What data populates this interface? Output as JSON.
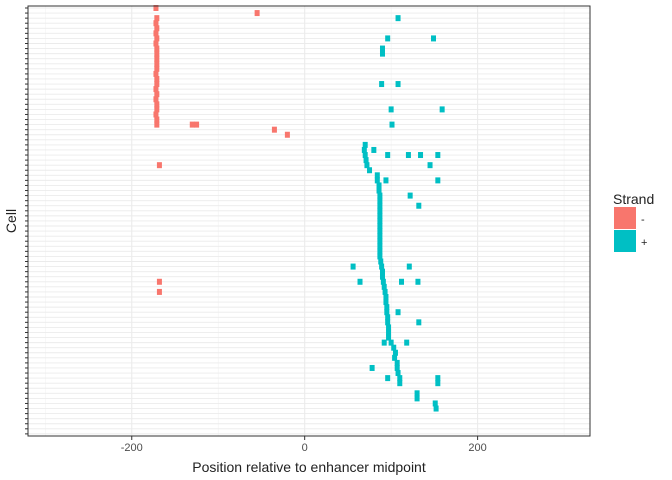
{
  "chart_data": {
    "type": "scatter",
    "xlabel": "Position relative to enhancer midpoint",
    "ylabel": "Cell",
    "xlim": [
      -320,
      330
    ],
    "xticks": [
      -200,
      0,
      200
    ],
    "xtick_labels": [
      "-200",
      "0",
      "200"
    ],
    "n_cells": 85,
    "grid": true,
    "legend": {
      "title": "Strand",
      "position": "right",
      "entries": [
        {
          "label": "-",
          "color": "#F8766D"
        },
        {
          "label": "+",
          "color": "#00BFC4"
        }
      ]
    },
    "series": [
      {
        "name": "-",
        "color": "#F8766D",
        "points": [
          [
            -172,
            1
          ],
          [
            -55,
            2
          ],
          [
            -171,
            3
          ],
          [
            -172,
            4
          ],
          [
            -171,
            5
          ],
          [
            -172,
            6
          ],
          [
            -171,
            7
          ],
          [
            -172,
            8
          ],
          [
            -171,
            9
          ],
          [
            -171,
            10
          ],
          [
            -171,
            11
          ],
          [
            -171,
            12
          ],
          [
            -171,
            13
          ],
          [
            -172,
            14
          ],
          [
            -171,
            15
          ],
          [
            -171,
            16
          ],
          [
            -172,
            17
          ],
          [
            -171,
            18
          ],
          [
            -172,
            19
          ],
          [
            -171,
            20
          ],
          [
            -171,
            21
          ],
          [
            -172,
            22
          ],
          [
            -171,
            23
          ],
          [
            -171,
            24
          ],
          [
            -130,
            24
          ],
          [
            -125,
            24
          ],
          [
            -35,
            25
          ],
          [
            -20,
            26
          ],
          [
            -168,
            32
          ],
          [
            -168,
            55
          ],
          [
            -168,
            57
          ]
        ]
      },
      {
        "name": "+",
        "color": "#00BFC4",
        "points": [
          [
            108,
            3
          ],
          [
            96,
            7
          ],
          [
            149,
            7
          ],
          [
            90,
            9
          ],
          [
            90,
            10
          ],
          [
            89,
            16
          ],
          [
            108,
            16
          ],
          [
            100,
            21
          ],
          [
            159,
            21
          ],
          [
            101,
            24
          ],
          [
            70,
            28
          ],
          [
            69,
            29
          ],
          [
            80,
            29
          ],
          [
            70,
            30
          ],
          [
            71,
            31
          ],
          [
            96,
            30
          ],
          [
            120,
            30
          ],
          [
            134,
            30
          ],
          [
            154,
            30
          ],
          [
            72,
            32
          ],
          [
            145,
            32
          ],
          [
            75,
            33
          ],
          [
            84,
            34
          ],
          [
            84,
            35
          ],
          [
            94,
            35
          ],
          [
            154,
            35
          ],
          [
            86,
            36
          ],
          [
            86,
            37
          ],
          [
            87,
            38
          ],
          [
            122,
            38
          ],
          [
            87,
            39
          ],
          [
            87,
            40
          ],
          [
            132,
            40
          ],
          [
            87,
            41
          ],
          [
            87,
            42
          ],
          [
            87,
            43
          ],
          [
            87,
            44
          ],
          [
            87,
            45
          ],
          [
            87,
            46
          ],
          [
            87,
            47
          ],
          [
            87,
            48
          ],
          [
            87,
            49
          ],
          [
            87,
            50
          ],
          [
            88,
            51
          ],
          [
            56,
            52
          ],
          [
            89,
            52
          ],
          [
            121,
            52
          ],
          [
            90,
            53
          ],
          [
            90,
            54
          ],
          [
            64,
            55
          ],
          [
            91,
            55
          ],
          [
            112,
            55
          ],
          [
            131,
            55
          ],
          [
            92,
            56
          ],
          [
            93,
            57
          ],
          [
            94,
            58
          ],
          [
            94,
            59
          ],
          [
            95,
            60
          ],
          [
            95,
            61
          ],
          [
            108,
            61
          ],
          [
            96,
            62
          ],
          [
            96,
            63
          ],
          [
            132,
            63
          ],
          [
            97,
            64
          ],
          [
            97,
            65
          ],
          [
            97,
            66
          ],
          [
            92,
            67
          ],
          [
            100,
            67
          ],
          [
            118,
            67
          ],
          [
            103,
            68
          ],
          [
            105,
            69
          ],
          [
            104,
            70
          ],
          [
            107,
            71
          ],
          [
            78,
            72
          ],
          [
            107,
            72
          ],
          [
            108,
            73
          ],
          [
            96,
            74
          ],
          [
            110,
            74
          ],
          [
            154,
            74
          ],
          [
            110,
            75
          ],
          [
            154,
            75
          ],
          [
            130,
            77
          ],
          [
            130,
            78
          ],
          [
            151,
            79
          ],
          [
            152,
            80
          ]
        ]
      }
    ]
  }
}
